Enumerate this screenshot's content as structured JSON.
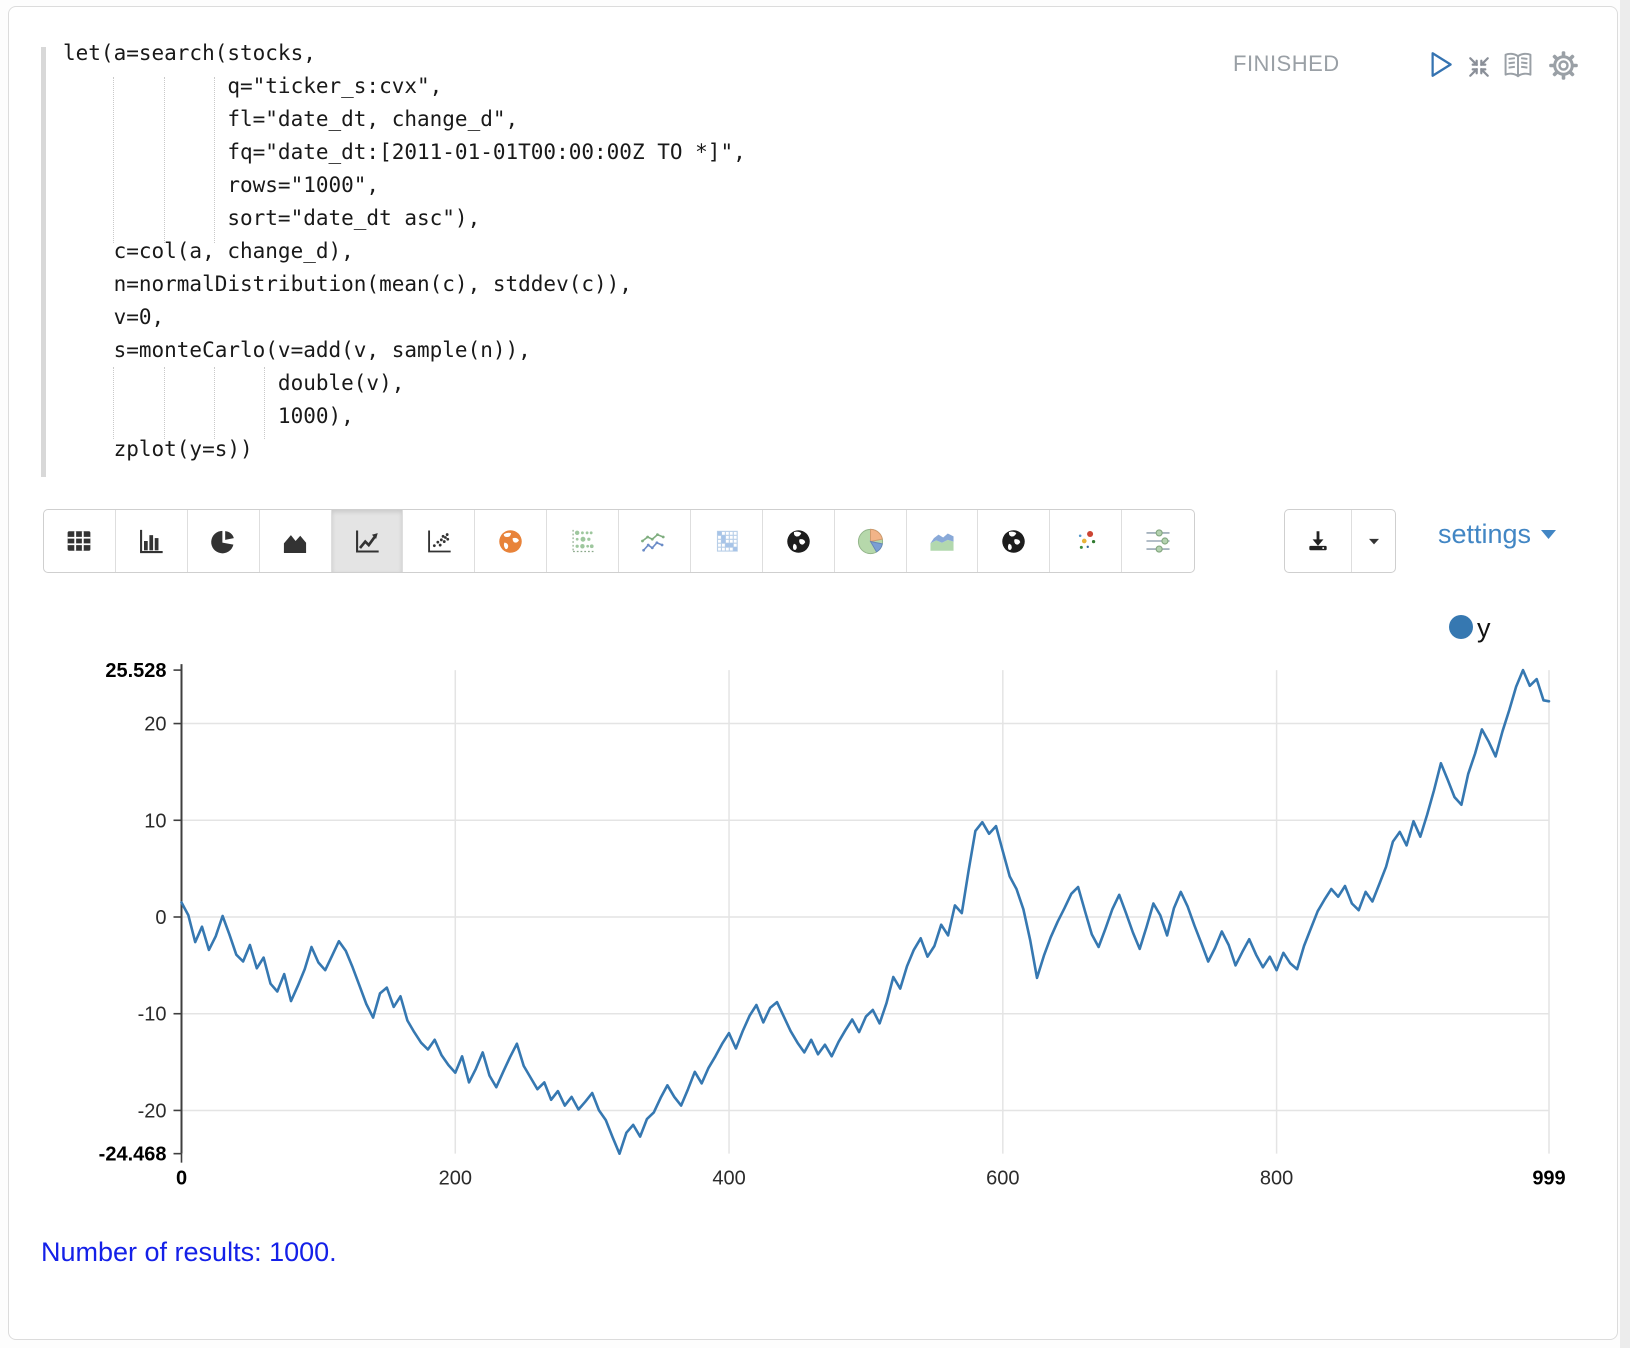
{
  "header": {
    "status": "FINISHED",
    "controls": [
      "run",
      "shrink",
      "show-editor",
      "paragraph-settings"
    ]
  },
  "editor": {
    "code": "let(a=search(stocks,\n             q=\"ticker_s:cvx\",\n             fl=\"date_dt, change_d\",\n             fq=\"date_dt:[2011-01-01T00:00:00Z TO *]\",\n             rows=\"1000\",\n             sort=\"date_dt asc\"),\n    c=col(a, change_d),\n    n=normalDistribution(mean(c), stddev(c)),\n    v=0,\n    s=monteCarlo(v=add(v, sample(n)),\n                 double(v),\n                 1000),\n    zplot(y=s))"
  },
  "toolbar": {
    "items": [
      {
        "name": "table",
        "selected": false
      },
      {
        "name": "bar-chart",
        "selected": false
      },
      {
        "name": "pie-chart",
        "selected": false
      },
      {
        "name": "area-chart",
        "selected": false
      },
      {
        "name": "line-chart",
        "selected": true
      },
      {
        "name": "scatter-plot",
        "selected": false
      },
      {
        "name": "map-orange",
        "selected": false
      },
      {
        "name": "matrix-dots",
        "selected": false
      },
      {
        "name": "multi-line",
        "selected": false
      },
      {
        "name": "heatmap",
        "selected": false
      },
      {
        "name": "globe-1",
        "selected": false
      },
      {
        "name": "pie-colored",
        "selected": false
      },
      {
        "name": "area-colored",
        "selected": false
      },
      {
        "name": "globe-2",
        "selected": false
      },
      {
        "name": "scatter-colored",
        "selected": false
      },
      {
        "name": "range-sliders",
        "selected": false
      }
    ]
  },
  "export": {
    "icons": [
      "download",
      "caret-down"
    ]
  },
  "settings_link": {
    "label": "settings"
  },
  "footer": {
    "results_text": "Number of results: 1000."
  },
  "colors": {
    "line": "#3678b1",
    "settings_link": "#4286c4",
    "results_text": "#1420e8",
    "status": "#9aa0a6",
    "play": "#3573b1",
    "grid": "#e4e4e4",
    "axis": "#3f3f3f"
  },
  "chart_data": {
    "type": "line",
    "title": "",
    "xlabel": "",
    "ylabel": "",
    "xlim": [
      0,
      999
    ],
    "ylim": [
      -24.468,
      25.528
    ],
    "grid": true,
    "x_gridlines": [
      200,
      400,
      600,
      800,
      999
    ],
    "y_gridlines": [
      20,
      10,
      0,
      -10,
      -20
    ],
    "x_ticks": [
      {
        "v": 0,
        "label": "0",
        "bold": true
      },
      {
        "v": 200,
        "label": "200",
        "bold": false
      },
      {
        "v": 400,
        "label": "400",
        "bold": false
      },
      {
        "v": 600,
        "label": "600",
        "bold": false
      },
      {
        "v": 800,
        "label": "800",
        "bold": false
      },
      {
        "v": 999,
        "label": "999",
        "bold": true
      }
    ],
    "y_ticks": [
      {
        "v": 25.528,
        "label": "25.528",
        "bold": true
      },
      {
        "v": 20,
        "label": "20",
        "bold": false
      },
      {
        "v": 10,
        "label": "10",
        "bold": false
      },
      {
        "v": 0,
        "label": "0",
        "bold": false
      },
      {
        "v": -10,
        "label": "-10",
        "bold": false
      },
      {
        "v": -20,
        "label": "-20",
        "bold": false
      },
      {
        "v": -24.468,
        "label": "-24.468",
        "bold": true
      }
    ],
    "legend": {
      "label": "y",
      "position": "top-right",
      "color": "#3678b1"
    },
    "series": [
      {
        "name": "y",
        "color": "#3678b1",
        "points": [
          [
            0,
            1.5
          ],
          [
            5,
            0.2
          ],
          [
            10,
            -2.6
          ],
          [
            15,
            -1.0
          ],
          [
            20,
            -3.4
          ],
          [
            25,
            -2.0
          ],
          [
            30,
            0.1
          ],
          [
            35,
            -1.8
          ],
          [
            40,
            -3.9
          ],
          [
            45,
            -4.6
          ],
          [
            50,
            -2.9
          ],
          [
            55,
            -5.3
          ],
          [
            60,
            -4.2
          ],
          [
            65,
            -6.9
          ],
          [
            70,
            -7.7
          ],
          [
            75,
            -5.9
          ],
          [
            80,
            -8.7
          ],
          [
            85,
            -7.1
          ],
          [
            90,
            -5.4
          ],
          [
            95,
            -3.1
          ],
          [
            100,
            -4.7
          ],
          [
            105,
            -5.5
          ],
          [
            110,
            -4.0
          ],
          [
            115,
            -2.5
          ],
          [
            120,
            -3.5
          ],
          [
            125,
            -5.2
          ],
          [
            130,
            -7.1
          ],
          [
            135,
            -9.0
          ],
          [
            140,
            -10.4
          ],
          [
            145,
            -7.9
          ],
          [
            150,
            -7.3
          ],
          [
            155,
            -9.3
          ],
          [
            160,
            -8.2
          ],
          [
            165,
            -10.7
          ],
          [
            170,
            -11.9
          ],
          [
            175,
            -13.0
          ],
          [
            180,
            -13.7
          ],
          [
            185,
            -12.7
          ],
          [
            190,
            -14.3
          ],
          [
            195,
            -15.3
          ],
          [
            200,
            -16.1
          ],
          [
            205,
            -14.4
          ],
          [
            210,
            -17.1
          ],
          [
            215,
            -15.7
          ],
          [
            220,
            -14.0
          ],
          [
            225,
            -16.4
          ],
          [
            230,
            -17.6
          ],
          [
            235,
            -16.0
          ],
          [
            240,
            -14.5
          ],
          [
            245,
            -13.1
          ],
          [
            250,
            -15.4
          ],
          [
            255,
            -16.6
          ],
          [
            260,
            -17.8
          ],
          [
            265,
            -17.1
          ],
          [
            270,
            -18.9
          ],
          [
            275,
            -18.0
          ],
          [
            280,
            -19.5
          ],
          [
            285,
            -18.6
          ],
          [
            290,
            -19.9
          ],
          [
            295,
            -19.1
          ],
          [
            300,
            -18.2
          ],
          [
            305,
            -20.0
          ],
          [
            310,
            -21.0
          ],
          [
            315,
            -22.8
          ],
          [
            320,
            -24.468
          ],
          [
            325,
            -22.3
          ],
          [
            330,
            -21.5
          ],
          [
            335,
            -22.7
          ],
          [
            340,
            -20.9
          ],
          [
            345,
            -20.2
          ],
          [
            350,
            -18.7
          ],
          [
            355,
            -17.4
          ],
          [
            360,
            -18.6
          ],
          [
            365,
            -19.5
          ],
          [
            370,
            -17.8
          ],
          [
            375,
            -16.0
          ],
          [
            380,
            -17.2
          ],
          [
            385,
            -15.6
          ],
          [
            390,
            -14.4
          ],
          [
            395,
            -13.1
          ],
          [
            400,
            -12.0
          ],
          [
            405,
            -13.6
          ],
          [
            410,
            -11.8
          ],
          [
            415,
            -10.2
          ],
          [
            420,
            -9.1
          ],
          [
            425,
            -10.9
          ],
          [
            430,
            -9.4
          ],
          [
            435,
            -8.8
          ],
          [
            440,
            -10.3
          ],
          [
            445,
            -11.8
          ],
          [
            450,
            -13.0
          ],
          [
            455,
            -14.0
          ],
          [
            460,
            -12.7
          ],
          [
            465,
            -14.2
          ],
          [
            470,
            -13.2
          ],
          [
            475,
            -14.4
          ],
          [
            480,
            -12.9
          ],
          [
            485,
            -11.7
          ],
          [
            490,
            -10.6
          ],
          [
            495,
            -11.9
          ],
          [
            500,
            -10.3
          ],
          [
            505,
            -9.6
          ],
          [
            510,
            -11.0
          ],
          [
            515,
            -8.9
          ],
          [
            520,
            -6.2
          ],
          [
            525,
            -7.4
          ],
          [
            530,
            -5.1
          ],
          [
            535,
            -3.4
          ],
          [
            540,
            -2.2
          ],
          [
            545,
            -4.1
          ],
          [
            550,
            -3.0
          ],
          [
            555,
            -0.8
          ],
          [
            560,
            -1.9
          ],
          [
            565,
            1.2
          ],
          [
            570,
            0.4
          ],
          [
            575,
            4.8
          ],
          [
            580,
            8.9
          ],
          [
            585,
            9.8
          ],
          [
            590,
            8.6
          ],
          [
            595,
            9.4
          ],
          [
            600,
            6.8
          ],
          [
            605,
            4.2
          ],
          [
            610,
            2.9
          ],
          [
            615,
            0.8
          ],
          [
            620,
            -2.4
          ],
          [
            625,
            -6.3
          ],
          [
            630,
            -4.0
          ],
          [
            635,
            -2.1
          ],
          [
            640,
            -0.5
          ],
          [
            645,
            0.9
          ],
          [
            650,
            2.4
          ],
          [
            655,
            3.1
          ],
          [
            660,
            0.6
          ],
          [
            665,
            -1.8
          ],
          [
            670,
            -3.1
          ],
          [
            675,
            -1.2
          ],
          [
            680,
            0.8
          ],
          [
            685,
            2.3
          ],
          [
            690,
            0.4
          ],
          [
            695,
            -1.6
          ],
          [
            700,
            -3.3
          ],
          [
            705,
            -1.0
          ],
          [
            710,
            1.4
          ],
          [
            715,
            0.2
          ],
          [
            720,
            -1.9
          ],
          [
            725,
            0.9
          ],
          [
            730,
            2.6
          ],
          [
            735,
            1.1
          ],
          [
            740,
            -0.9
          ],
          [
            745,
            -2.7
          ],
          [
            750,
            -4.6
          ],
          [
            755,
            -3.2
          ],
          [
            760,
            -1.5
          ],
          [
            765,
            -2.9
          ],
          [
            770,
            -5.0
          ],
          [
            775,
            -3.6
          ],
          [
            780,
            -2.3
          ],
          [
            785,
            -3.9
          ],
          [
            790,
            -5.2
          ],
          [
            795,
            -4.1
          ],
          [
            800,
            -5.5
          ],
          [
            805,
            -3.7
          ],
          [
            810,
            -4.8
          ],
          [
            815,
            -5.4
          ],
          [
            820,
            -3.0
          ],
          [
            825,
            -1.2
          ],
          [
            830,
            0.6
          ],
          [
            835,
            1.8
          ],
          [
            840,
            2.9
          ],
          [
            845,
            2.1
          ],
          [
            850,
            3.2
          ],
          [
            855,
            1.4
          ],
          [
            860,
            0.7
          ],
          [
            865,
            2.6
          ],
          [
            870,
            1.6
          ],
          [
            875,
            3.4
          ],
          [
            880,
            5.2
          ],
          [
            885,
            7.8
          ],
          [
            890,
            8.8
          ],
          [
            895,
            7.4
          ],
          [
            900,
            9.9
          ],
          [
            905,
            8.3
          ],
          [
            910,
            10.6
          ],
          [
            915,
            13.1
          ],
          [
            920,
            15.9
          ],
          [
            925,
            14.2
          ],
          [
            930,
            12.4
          ],
          [
            935,
            11.6
          ],
          [
            940,
            14.8
          ],
          [
            945,
            16.9
          ],
          [
            950,
            19.4
          ],
          [
            955,
            18.1
          ],
          [
            960,
            16.6
          ],
          [
            965,
            19.2
          ],
          [
            970,
            21.4
          ],
          [
            975,
            23.8
          ],
          [
            980,
            25.528
          ],
          [
            985,
            23.9
          ],
          [
            990,
            24.6
          ],
          [
            995,
            22.4
          ],
          [
            999,
            22.3
          ]
        ]
      }
    ]
  }
}
